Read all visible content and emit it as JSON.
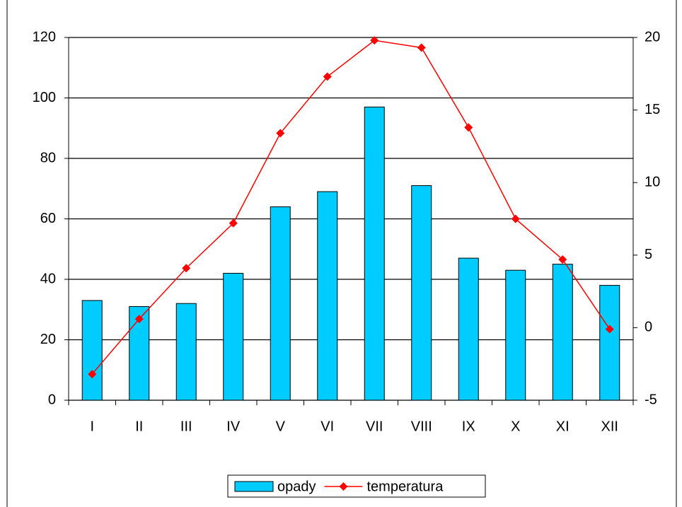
{
  "chart_data": {
    "type": "bar_line",
    "categories": [
      "I",
      "II",
      "III",
      "IV",
      "V",
      "VI",
      "VII",
      "VIII",
      "IX",
      "X",
      "XI",
      "XII"
    ],
    "series": [
      {
        "name": "opady",
        "color": "#00ccff",
        "type": "bar",
        "values": [
          33,
          31,
          32,
          42,
          64,
          69,
          97,
          71,
          47,
          43,
          45,
          38
        ]
      },
      {
        "name": "temperatura",
        "color": "#ff0000",
        "type": "line",
        "axis": "y2",
        "values": [
          -3.2,
          0.6,
          4.1,
          7.2,
          13.4,
          17.3,
          19.8,
          19.3,
          13.8,
          7.5,
          4.7,
          -0.1
        ]
      }
    ],
    "ylim": [
      0,
      120
    ],
    "yticks": [
      0,
      20,
      40,
      60,
      80,
      100,
      120
    ],
    "y2lim": [
      -5,
      20
    ],
    "y2ticks": [
      -5,
      0,
      5,
      10,
      15,
      20
    ],
    "grid": true,
    "legend": "bottom"
  }
}
